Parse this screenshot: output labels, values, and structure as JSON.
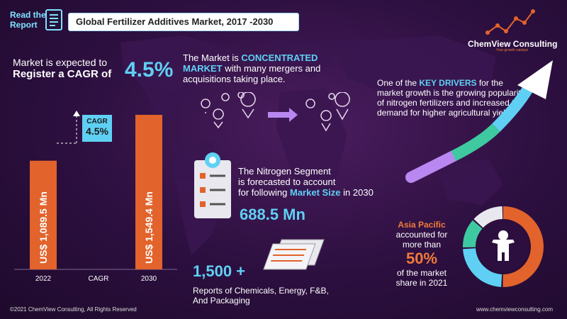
{
  "header": {
    "read_line1": "Read the",
    "read_line2": "Report",
    "title": "Global Fertilizer Additives Market, 2017 -2030"
  },
  "cagr": {
    "prefix_line1": "Market is expected to",
    "prefix_line2": "Register a CAGR of",
    "value": "4.5%",
    "box_label": "CAGR",
    "box_value": "4.5%"
  },
  "chart_data": {
    "type": "bar",
    "categories": [
      "2022",
      "CAGR",
      "2030"
    ],
    "values": [
      1089.5,
      null,
      1549.4
    ],
    "data_labels": [
      "US$ 1,089.5 Mn",
      "",
      "US$ 1,549.4 Mn"
    ],
    "unit": "US$ Mn",
    "bar_color": "#e2632b"
  },
  "concentrated": {
    "pre": "The Market is ",
    "hl": "CONCENTRATED MARKET",
    "post": " with many mergers and acquisitions taking place."
  },
  "drivers": {
    "pre": "One of the ",
    "hl": "KEY DRIVERS",
    "post": " for the market growth is the growing popularity of nitrogen fertilizers and increased the demand for higher agricultural yields"
  },
  "nitrogen": {
    "line1": "The Nitrogen Segment",
    "line2": "is forecasted to account",
    "line3_pre": "for following ",
    "line3_hl": "Market Size",
    "line3_post": " in 2030",
    "value": "688.5 Mn"
  },
  "reports": {
    "count": "1,500 +",
    "line1": "Reports of Chemicals, Energy, F&B,",
    "line2": "And Packaging"
  },
  "asia": {
    "region": "Asia Pacific",
    "l1": "accounted for",
    "l2": "more than",
    "share": "50%",
    "l3": "of the market",
    "l4": "share in 2021"
  },
  "logo": {
    "name": "ChemView Consulting",
    "tagline": "Your growth catalyst"
  },
  "footer": {
    "copyright": "©2021  ChemView  Consulting,  All Rights Reserved",
    "website": "www.chemviewconsulting.com"
  },
  "colors": {
    "accent_blue": "#5fd0f4",
    "accent_orange": "#e2632b",
    "accent_green": "#3fc9a0",
    "accent_violet": "#b888f0"
  }
}
